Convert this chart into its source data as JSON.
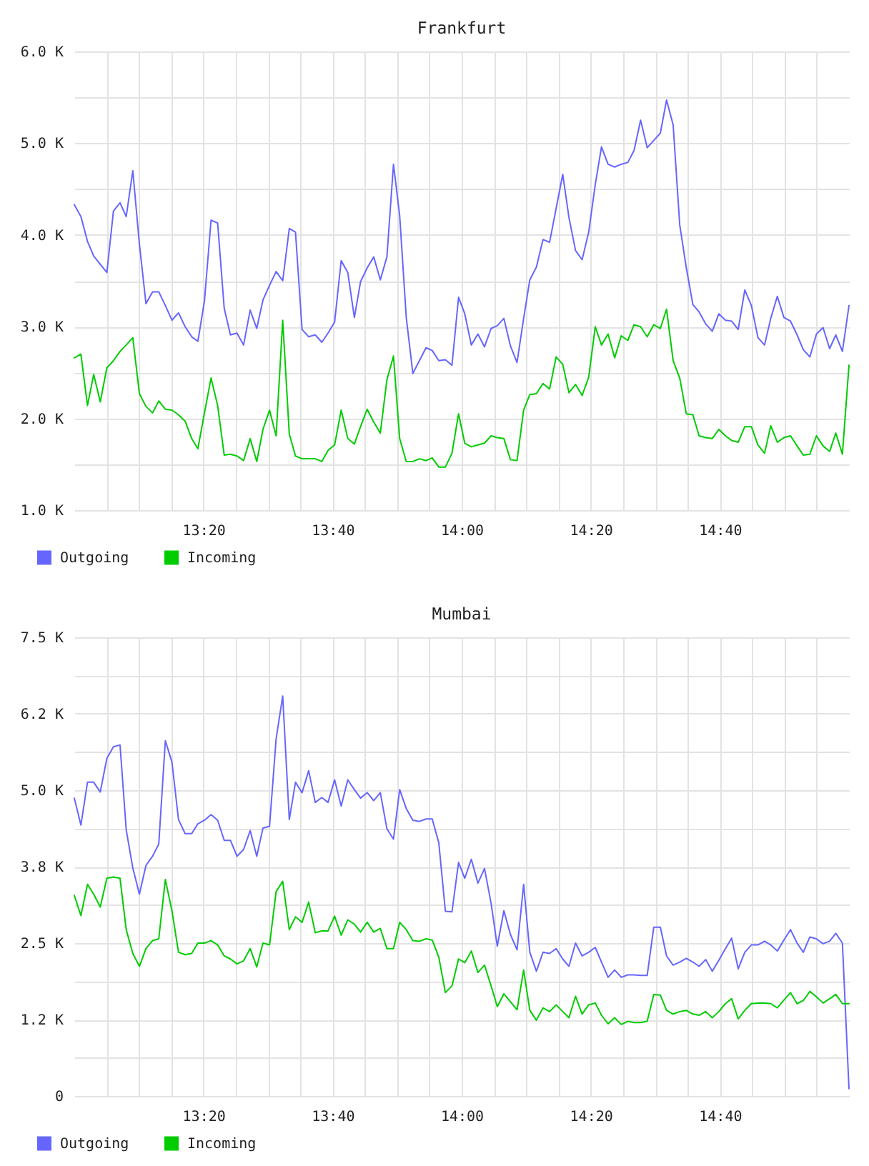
{
  "chart_data": [
    {
      "type": "line",
      "title": "Frankfurt",
      "grid": true,
      "legend": "bottom left",
      "x": [
        13.0,
        13.017,
        13.034,
        13.05,
        13.067,
        13.084,
        13.101,
        13.118,
        13.134,
        13.151,
        13.168,
        13.185,
        13.202,
        13.218,
        13.235,
        13.252,
        13.269,
        13.286,
        13.303,
        13.319,
        13.336,
        13.353,
        13.37,
        13.387,
        13.403,
        13.42,
        13.437,
        13.454,
        13.471,
        13.487,
        13.504,
        13.521,
        13.538,
        13.555,
        13.571,
        13.588,
        13.605,
        13.622,
        13.639,
        13.655,
        13.672,
        13.689,
        13.706,
        13.723,
        13.739,
        13.756,
        13.773,
        13.79,
        13.807,
        13.824,
        13.84,
        13.857,
        13.874,
        13.891,
        13.908,
        13.924,
        13.941,
        13.958,
        13.975,
        13.992,
        14.008,
        14.025,
        14.042,
        14.059,
        14.076,
        14.092,
        14.109,
        14.126,
        14.143,
        14.16,
        14.176,
        14.193,
        14.21,
        14.227,
        14.244,
        14.261,
        14.277,
        14.294,
        14.311,
        14.328,
        14.345,
        14.361,
        14.378,
        14.395,
        14.412,
        14.429,
        14.445,
        14.462,
        14.479,
        14.496,
        14.513,
        14.529,
        14.546,
        14.563,
        14.58,
        14.597,
        14.613,
        14.63,
        14.647,
        14.664,
        14.681,
        14.697,
        14.714,
        14.731,
        14.748,
        14.765,
        14.782,
        14.798,
        14.815,
        14.832,
        14.849,
        14.866,
        14.882,
        14.899,
        14.916,
        14.933,
        14.95,
        14.966,
        14.983,
        15.0
      ],
      "xlim": [
        13,
        15
      ],
      "xticks": [
        {
          "value": 13.0833,
          "label": null
        },
        {
          "value": 13.1667,
          "label": null
        },
        {
          "value": 13.25,
          "label": null
        },
        {
          "value": 13.3333,
          "label": "13:20"
        },
        {
          "value": 13.4167,
          "label": null
        },
        {
          "value": 13.5,
          "label": null
        },
        {
          "value": 13.5833,
          "label": null
        },
        {
          "value": 13.6667,
          "label": "13:40"
        },
        {
          "value": 13.75,
          "label": null
        },
        {
          "value": 13.8333,
          "label": null
        },
        {
          "value": 13.9167,
          "label": null
        },
        {
          "value": 14,
          "label": "14:00"
        },
        {
          "value": 14.0833,
          "label": null
        },
        {
          "value": 14.1667,
          "label": null
        },
        {
          "value": 14.25,
          "label": null
        },
        {
          "value": 14.3333,
          "label": "14:20"
        },
        {
          "value": 14.4167,
          "label": null
        },
        {
          "value": 14.5,
          "label": null
        },
        {
          "value": 14.5833,
          "label": null
        },
        {
          "value": 14.6667,
          "label": "14:40"
        },
        {
          "value": 14.75,
          "label": null
        },
        {
          "value": 14.8333,
          "label": null
        },
        {
          "value": 14.9167,
          "label": null
        }
      ],
      "ylim": [
        1000,
        6000
      ],
      "yticks": [
        {
          "value": 1000,
          "label": "1.0 K"
        },
        {
          "value": 1500,
          "label": null
        },
        {
          "value": 2000,
          "label": "2.0 K"
        },
        {
          "value": 2500,
          "label": null
        },
        {
          "value": 3000,
          "label": "3.0 K"
        },
        {
          "value": 3500,
          "label": null
        },
        {
          "value": 4000,
          "label": "4.0 K"
        },
        {
          "value": 4500,
          "label": null
        },
        {
          "value": 5000,
          "label": "5.0 K"
        },
        {
          "value": 5500,
          "label": null
        },
        {
          "value": 6000,
          "label": "6.0 K"
        }
      ],
      "series": [
        {
          "name": "Outgoing",
          "color": "#6666ff",
          "values": [
            4330,
            4200,
            3930,
            3770,
            3680,
            3590,
            4260,
            4350,
            4200,
            4700,
            3900,
            3250,
            3380,
            3380,
            3230,
            3070,
            3150,
            3000,
            2890,
            2840,
            3280,
            4160,
            4130,
            3200,
            2910,
            2930,
            2800,
            3180,
            2980,
            3290,
            3450,
            3600,
            3500,
            4070,
            4030,
            2970,
            2890,
            2910,
            2830,
            2930,
            3050,
            3720,
            3590,
            3100,
            3490,
            3640,
            3760,
            3510,
            3760,
            4770,
            4210,
            3100,
            2490,
            2630,
            2770,
            2740,
            2630,
            2640,
            2580,
            3320,
            3140,
            2800,
            2920,
            2780,
            2980,
            3010,
            3090,
            2790,
            2610,
            3090,
            3510,
            3650,
            3950,
            3920,
            4290,
            4660,
            4190,
            3830,
            3730,
            4030,
            4550,
            4960,
            4770,
            4740,
            4770,
            4790,
            4920,
            5250,
            4950,
            5030,
            5110,
            5470,
            5200,
            4110,
            3640,
            3240,
            3160,
            3030,
            2950,
            3140,
            3070,
            3060,
            2970,
            3400,
            3230,
            2880,
            2800,
            3090,
            3330,
            3100,
            3060,
            2910,
            2750,
            2670,
            2920,
            2990,
            2760,
            2910,
            2730,
            3230
          ]
        },
        {
          "name": "Incoming",
          "color": "#00cc00",
          "values": [
            2660,
            2700,
            2140,
            2480,
            2180,
            2550,
            2630,
            2730,
            2800,
            2880,
            2270,
            2130,
            2060,
            2190,
            2100,
            2090,
            2040,
            1970,
            1780,
            1670,
            2060,
            2440,
            2140,
            1600,
            1610,
            1590,
            1540,
            1780,
            1530,
            1880,
            2090,
            1810,
            3070,
            1830,
            1590,
            1560,
            1560,
            1560,
            1530,
            1650,
            1710,
            2090,
            1780,
            1720,
            1910,
            2100,
            1960,
            1840,
            2420,
            2680,
            1780,
            1530,
            1530,
            1560,
            1540,
            1570,
            1470,
            1470,
            1620,
            2050,
            1730,
            1690,
            1710,
            1730,
            1810,
            1790,
            1780,
            1550,
            1540,
            2090,
            2260,
            2270,
            2380,
            2320,
            2670,
            2590,
            2280,
            2370,
            2250,
            2450,
            3000,
            2800,
            2920,
            2660,
            2900,
            2850,
            3020,
            3000,
            2890,
            3020,
            2980,
            3190,
            2630,
            2440,
            2050,
            2040,
            1810,
            1790,
            1780,
            1880,
            1810,
            1760,
            1740,
            1910,
            1910,
            1710,
            1620,
            1920,
            1740,
            1790,
            1810,
            1700,
            1600,
            1610,
            1810,
            1700,
            1640,
            1840,
            1610,
            2580
          ]
        }
      ]
    },
    {
      "type": "line",
      "title": "Mumbai",
      "grid": true,
      "legend": "bottom left",
      "x": [
        13.0,
        13.017,
        13.034,
        13.05,
        13.067,
        13.084,
        13.101,
        13.118,
        13.134,
        13.151,
        13.168,
        13.185,
        13.202,
        13.218,
        13.235,
        13.252,
        13.269,
        13.286,
        13.303,
        13.319,
        13.336,
        13.353,
        13.37,
        13.387,
        13.403,
        13.42,
        13.437,
        13.454,
        13.471,
        13.487,
        13.504,
        13.521,
        13.538,
        13.555,
        13.571,
        13.588,
        13.605,
        13.622,
        13.639,
        13.655,
        13.672,
        13.689,
        13.706,
        13.723,
        13.739,
        13.756,
        13.773,
        13.79,
        13.807,
        13.824,
        13.84,
        13.857,
        13.874,
        13.891,
        13.908,
        13.924,
        13.941,
        13.958,
        13.975,
        13.992,
        14.008,
        14.025,
        14.042,
        14.059,
        14.076,
        14.092,
        14.109,
        14.126,
        14.143,
        14.16,
        14.176,
        14.193,
        14.21,
        14.227,
        14.244,
        14.261,
        14.277,
        14.294,
        14.311,
        14.328,
        14.345,
        14.361,
        14.378,
        14.395,
        14.412,
        14.429,
        14.445,
        14.462,
        14.479,
        14.496,
        14.513,
        14.529,
        14.546,
        14.563,
        14.58,
        14.597,
        14.613,
        14.63,
        14.647,
        14.664,
        14.681,
        14.697,
        14.714,
        14.731,
        14.748,
        14.765,
        14.782,
        14.798,
        14.815,
        14.832,
        14.849,
        14.866,
        14.882,
        14.899,
        14.916,
        14.933,
        14.95,
        14.966,
        14.983,
        15.0
      ],
      "xlim": [
        13,
        15
      ],
      "xticks": [
        {
          "value": 13.0833,
          "label": null
        },
        {
          "value": 13.1667,
          "label": null
        },
        {
          "value": 13.25,
          "label": null
        },
        {
          "value": 13.3333,
          "label": "13:20"
        },
        {
          "value": 13.4167,
          "label": null
        },
        {
          "value": 13.5,
          "label": null
        },
        {
          "value": 13.5833,
          "label": null
        },
        {
          "value": 13.6667,
          "label": "13:40"
        },
        {
          "value": 13.75,
          "label": null
        },
        {
          "value": 13.8333,
          "label": null
        },
        {
          "value": 13.9167,
          "label": null
        },
        {
          "value": 14,
          "label": "14:00"
        },
        {
          "value": 14.0833,
          "label": null
        },
        {
          "value": 14.1667,
          "label": null
        },
        {
          "value": 14.25,
          "label": null
        },
        {
          "value": 14.3333,
          "label": "14:20"
        },
        {
          "value": 14.4167,
          "label": null
        },
        {
          "value": 14.5,
          "label": null
        },
        {
          "value": 14.5833,
          "label": null
        },
        {
          "value": 14.6667,
          "label": "14:40"
        },
        {
          "value": 14.75,
          "label": null
        },
        {
          "value": 14.8333,
          "label": null
        },
        {
          "value": 14.9167,
          "label": null
        }
      ],
      "ylim": [
        0,
        7500
      ],
      "yticks": [
        0,
        {
          "value": 625,
          "label": null
        },
        {
          "value": 1250,
          "label": "1.2 K"
        },
        {
          "value": 1875,
          "label": null
        },
        {
          "value": 2500,
          "label": "2.5 K"
        },
        {
          "value": 3125,
          "label": null
        },
        {
          "value": 3750,
          "label": "3.8 K"
        },
        {
          "value": 4375,
          "label": null
        },
        {
          "value": 5000,
          "label": "5.0 K"
        },
        {
          "value": 5625,
          "label": null
        },
        {
          "value": 6250,
          "label": "6.2 K"
        },
        {
          "value": 6875,
          "label": null
        },
        {
          "value": 7500,
          "label": "7.5 K"
        }
      ],
      "series": [
        {
          "name": "Outgoing",
          "color": "#6666ff",
          "values": [
            4870,
            4430,
            5130,
            5130,
            4970,
            5520,
            5710,
            5740,
            4350,
            3730,
            3300,
            3770,
            3920,
            4120,
            5810,
            5460,
            4520,
            4290,
            4290,
            4450,
            4510,
            4600,
            4510,
            4180,
            4180,
            3920,
            4030,
            4340,
            3920,
            4380,
            4410,
            5840,
            6540,
            4520,
            5130,
            4960,
            5320,
            4800,
            4880,
            4800,
            5170,
            4740,
            5170,
            5010,
            4870,
            4960,
            4830,
            4960,
            4370,
            4200,
            5010,
            4700,
            4510,
            4490,
            4530,
            4530,
            4140,
            3020,
            3010,
            3820,
            3560,
            3870,
            3480,
            3720,
            3150,
            2450,
            3030,
            2640,
            2390,
            3460,
            2350,
            2040,
            2350,
            2330,
            2410,
            2240,
            2120,
            2500,
            2290,
            2350,
            2430,
            2190,
            1940,
            2060,
            1940,
            1980,
            1980,
            1970,
            1970,
            2760,
            2760,
            2290,
            2140,
            2190,
            2250,
            2190,
            2120,
            2230,
            2040,
            2220,
            2410,
            2580,
            2080,
            2350,
            2470,
            2470,
            2530,
            2470,
            2370,
            2550,
            2720,
            2500,
            2350,
            2600,
            2570,
            2490,
            2530,
            2660,
            2500,
            120
          ]
        },
        {
          "name": "Incoming",
          "color": "#00cc00",
          "values": [
            3280,
            2950,
            3460,
            3300,
            3090,
            3560,
            3580,
            3560,
            2720,
            2330,
            2120,
            2410,
            2540,
            2570,
            3540,
            3030,
            2350,
            2310,
            2330,
            2500,
            2500,
            2540,
            2470,
            2290,
            2240,
            2160,
            2210,
            2410,
            2110,
            2500,
            2470,
            3340,
            3510,
            2720,
            2930,
            2840,
            3170,
            2670,
            2700,
            2700,
            2940,
            2630,
            2880,
            2810,
            2680,
            2840,
            2680,
            2740,
            2410,
            2410,
            2840,
            2720,
            2540,
            2530,
            2570,
            2550,
            2270,
            1690,
            1800,
            2240,
            2180,
            2370,
            2020,
            2140,
            1800,
            1460,
            1670,
            1540,
            1410,
            2060,
            1400,
            1240,
            1440,
            1380,
            1490,
            1380,
            1280,
            1630,
            1340,
            1490,
            1520,
            1320,
            1180,
            1280,
            1170,
            1220,
            1200,
            1200,
            1220,
            1660,
            1650,
            1400,
            1340,
            1380,
            1400,
            1340,
            1320,
            1380,
            1280,
            1380,
            1510,
            1590,
            1260,
            1400,
            1510,
            1520,
            1520,
            1510,
            1440,
            1570,
            1690,
            1510,
            1560,
            1710,
            1620,
            1520,
            1590,
            1660,
            1510,
            1510
          ]
        }
      ]
    }
  ]
}
